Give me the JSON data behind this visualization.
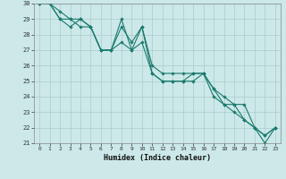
{
  "xlabel": "Humidex (Indice chaleur)",
  "ylabel": "",
  "xlim": [
    -0.5,
    23.5
  ],
  "ylim": [
    21,
    30
  ],
  "yticks": [
    21,
    22,
    23,
    24,
    25,
    26,
    27,
    28,
    29,
    30
  ],
  "xticks": [
    0,
    1,
    2,
    3,
    4,
    5,
    6,
    7,
    8,
    9,
    10,
    11,
    12,
    13,
    14,
    15,
    16,
    17,
    18,
    19,
    20,
    21,
    22,
    23
  ],
  "background_color": "#cce8e8",
  "grid_color": "#aacccc",
  "line_color": "#1a7a6e",
  "series": [
    [
      30,
      30,
      29.5,
      29,
      28.5,
      28.5,
      27,
      27,
      28.5,
      27.5,
      28.5,
      26,
      25.5,
      25.5,
      25.5,
      25.5,
      25.5,
      24.5,
      24,
      23.5,
      23.5,
      22,
      21.5,
      22
    ],
    [
      30,
      30,
      29,
      29,
      29,
      28.5,
      27,
      27,
      29,
      27,
      28.5,
      25.5,
      25,
      25,
      25,
      25.5,
      25.5,
      24.5,
      23.5,
      23.5,
      22.5,
      22,
      21,
      22
    ],
    [
      30,
      30,
      29,
      28.5,
      29,
      28.5,
      27,
      27,
      27.5,
      27,
      27.5,
      25.5,
      25,
      25,
      25,
      25,
      25.5,
      24,
      23.5,
      23,
      22.5,
      22,
      21.5,
      22
    ]
  ]
}
